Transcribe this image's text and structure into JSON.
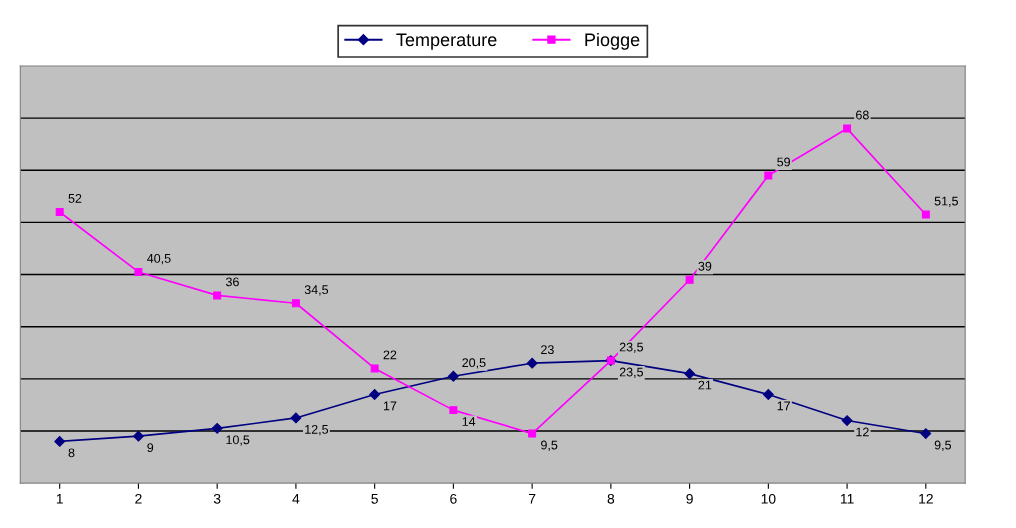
{
  "chart_data": {
    "type": "line",
    "categories": [
      "1",
      "2",
      "3",
      "4",
      "5",
      "6",
      "7",
      "8",
      "9",
      "10",
      "11",
      "12"
    ],
    "series": [
      {
        "name": "Temperature",
        "color": "#000080",
        "marker": "diamond",
        "values": [
          8,
          9,
          10.5,
          12.5,
          17,
          20.5,
          23,
          23.5,
          21,
          17,
          12,
          9.5
        ],
        "value_labels": [
          "8",
          "9",
          "10,5",
          "12,5",
          "17",
          "20,5",
          "23",
          "23,5",
          "21",
          "17",
          "12",
          "9,5"
        ]
      },
      {
        "name": "Piogge",
        "color": "#ff00ff",
        "marker": "square",
        "values": [
          52,
          40.5,
          36,
          34.5,
          22,
          14,
          9.5,
          23.5,
          39,
          59,
          68,
          51.5
        ],
        "value_labels": [
          "52",
          "40,5",
          "36",
          "34,5",
          "22",
          "14",
          "9,5",
          "23,5",
          "39",
          "59",
          "68",
          "51,5"
        ]
      }
    ],
    "ylim": [
      0,
      80
    ],
    "yticks": [
      {
        "value": 10,
        "label": null
      },
      {
        "value": 20,
        "label": null
      },
      {
        "value": 30,
        "label": null
      },
      {
        "value": 40,
        "label": null
      },
      {
        "value": 50,
        "label": null
      },
      {
        "value": 60,
        "label": null
      },
      {
        "value": 70,
        "label": null
      }
    ],
    "tick_labels": "x",
    "grid": "y",
    "legend": "top",
    "line_style": "solid"
  }
}
